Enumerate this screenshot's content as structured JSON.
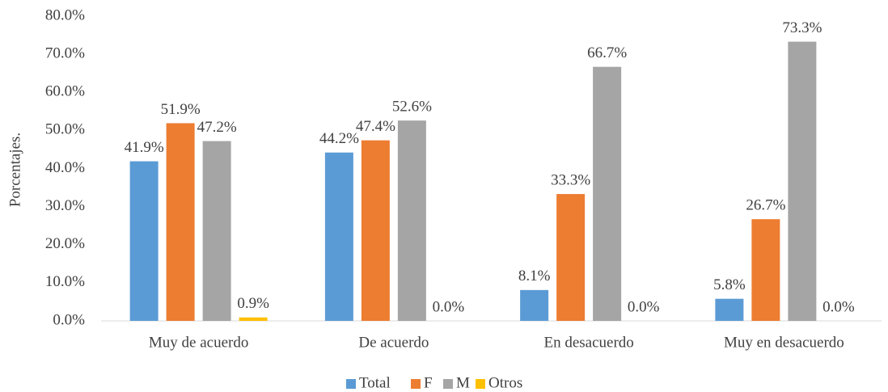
{
  "chart_data": {
    "type": "bar",
    "y_label": "Porcentajes.",
    "categories": [
      "Muy de acuerdo",
      "De acuerdo",
      "En desacuerdo",
      "Muy en desacuerdo"
    ],
    "series": [
      {
        "name": "Total",
        "color": "#5b9bd5",
        "values": [
          41.9,
          44.2,
          8.1,
          5.8
        ],
        "value_labels": [
          "41.9%",
          "44.2%",
          "8.1%",
          "5.8%"
        ]
      },
      {
        "name": "F",
        "color": "#ed7d31",
        "values": [
          51.9,
          47.4,
          33.3,
          26.7
        ],
        "value_labels": [
          "51.9%",
          "47.4%",
          "33.3%",
          "26.7%"
        ]
      },
      {
        "name": "M",
        "color": "#a5a5a5",
        "values": [
          47.2,
          52.6,
          66.7,
          73.3
        ],
        "value_labels": [
          "47.2%",
          "52.6%",
          "66.7%",
          "73.3%"
        ]
      },
      {
        "name": "Otros",
        "color": "#ffc000",
        "values": [
          0.9,
          0.0,
          0.0,
          0.0
        ],
        "value_labels": [
          "0.9%",
          "0.0%",
          "0.0%",
          "0.0%"
        ]
      }
    ],
    "ylim": [
      0,
      80
    ],
    "yticks": [
      {
        "value": 0,
        "label": "0.0%"
      },
      {
        "value": 10,
        "label": "10.0%"
      },
      {
        "value": 20,
        "label": "20.0%"
      },
      {
        "value": 30,
        "label": "30.0%"
      },
      {
        "value": 40,
        "label": "40.0%"
      },
      {
        "value": 50,
        "label": "50.0%"
      },
      {
        "value": 60,
        "label": "60.0%"
      },
      {
        "value": 70,
        "label": "70.0%"
      },
      {
        "value": 80,
        "label": "80.0%"
      }
    ],
    "legend": "bottom"
  }
}
